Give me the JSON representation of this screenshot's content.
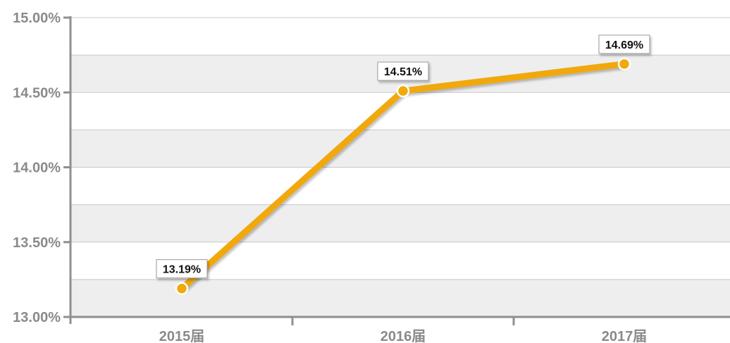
{
  "chart_data": {
    "type": "line",
    "categories": [
      "2015届",
      "2016届",
      "2017届"
    ],
    "values": [
      13.19,
      14.51,
      14.69
    ],
    "data_labels": [
      "13.19%",
      "14.51%",
      "14.69%"
    ],
    "ylim": [
      13.0,
      15.0
    ],
    "yticks": [
      13.0,
      13.5,
      14.0,
      14.5,
      15.0
    ],
    "ytick_labels": [
      "13.00%",
      "13.50%",
      "14.00%",
      "14.50%",
      "15.00%"
    ],
    "grid": true,
    "line_color": "#f0a80b",
    "band_color": "#eeeeee"
  }
}
